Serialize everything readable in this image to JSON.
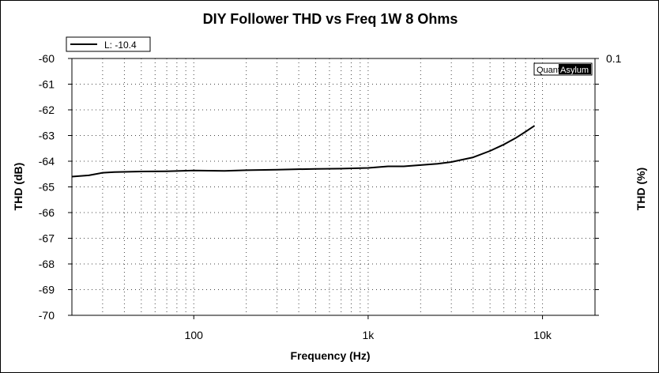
{
  "chart_data": {
    "type": "line",
    "title": "DIY Follower THD vs Freq  1W 8 Ohms",
    "xlabel": "Frequency (Hz)",
    "ylabel": "THD (dB)",
    "y2label": "THD (%)",
    "x_scale": "log",
    "xlim": [
      20,
      20000
    ],
    "ylim": [
      -70,
      -60
    ],
    "y2_ticks": [
      "0.1"
    ],
    "x_ticks": [
      {
        "value": 100,
        "label": "100"
      },
      {
        "value": 1000,
        "label": "1k"
      },
      {
        "value": 10000,
        "label": "10k"
      }
    ],
    "y_ticks": [
      -60,
      -61,
      -62,
      -63,
      -64,
      -65,
      -66,
      -67,
      -68,
      -69,
      -70
    ],
    "grid": true,
    "legend_position": "top-left",
    "brand": {
      "left": "Quant",
      "right": "Asylum"
    },
    "series": [
      {
        "name": "L: -10.4",
        "color": "#000000",
        "x": [
          20,
          25,
          30,
          35,
          50,
          70,
          100,
          150,
          200,
          300,
          500,
          700,
          1000,
          1300,
          1600,
          2000,
          2500,
          3000,
          4000,
          5000,
          6000,
          7000,
          8000,
          9000
        ],
        "y": [
          -64.6,
          -64.55,
          -64.45,
          -64.42,
          -64.4,
          -64.39,
          -64.36,
          -64.38,
          -64.35,
          -64.33,
          -64.3,
          -64.29,
          -64.26,
          -64.2,
          -64.2,
          -64.15,
          -64.1,
          -64.03,
          -63.85,
          -63.6,
          -63.35,
          -63.1,
          -62.85,
          -62.62
        ]
      }
    ]
  }
}
